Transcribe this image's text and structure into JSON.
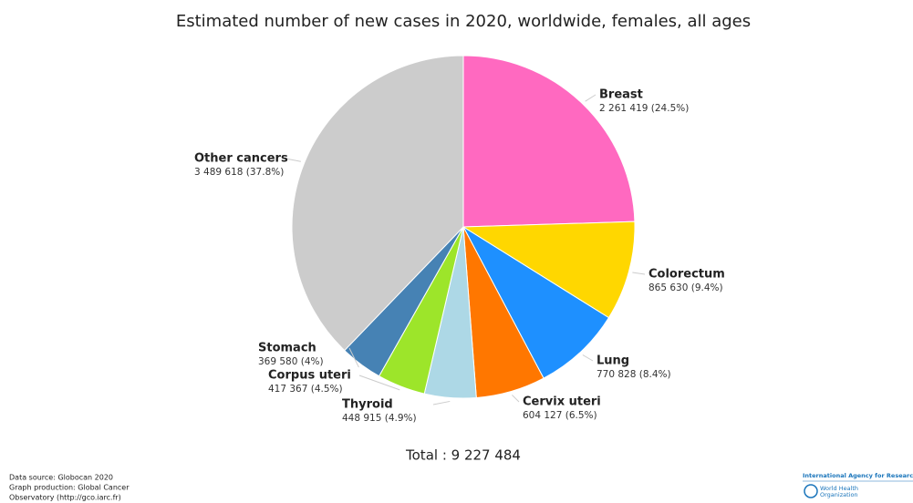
{
  "chart_data": {
    "type": "pie",
    "title": "Estimated number of new cases in 2020, worldwide, females, all ages",
    "categories": [
      "Breast",
      "Colorectum",
      "Lung",
      "Cervix uteri",
      "Thyroid",
      "Corpus uteri",
      "Stomach",
      "Other cancers"
    ],
    "values": [
      2261419,
      865630,
      770828,
      604127,
      448915,
      417367,
      369580,
      3489618
    ],
    "value_labels": [
      "2 261 419 (24.5%)",
      "865 630 (9.4%)",
      "770 828 (8.4%)",
      "604 127 (6.5%)",
      "448 915 (4.9%)",
      "417 367 (4.5%)",
      "369 580 (4%)",
      "3 489 618 (37.8%)"
    ],
    "colors": [
      "#ff69c0",
      "#ffd700",
      "#1e90ff",
      "#ff7700",
      "#add8e6",
      "#9de52a",
      "#4682b4",
      "#cccccc"
    ],
    "total_label": "Total : 9 227 484"
  },
  "footer": {
    "lines": [
      "Data source: Globocan 2020",
      "Graph production: Global Cancer",
      "Observatory (http://gco.iarc.fr)"
    ],
    "logo_top": "International Agency for Research on Cancer",
    "logo_bottom": [
      "World Health",
      "Organization"
    ]
  }
}
